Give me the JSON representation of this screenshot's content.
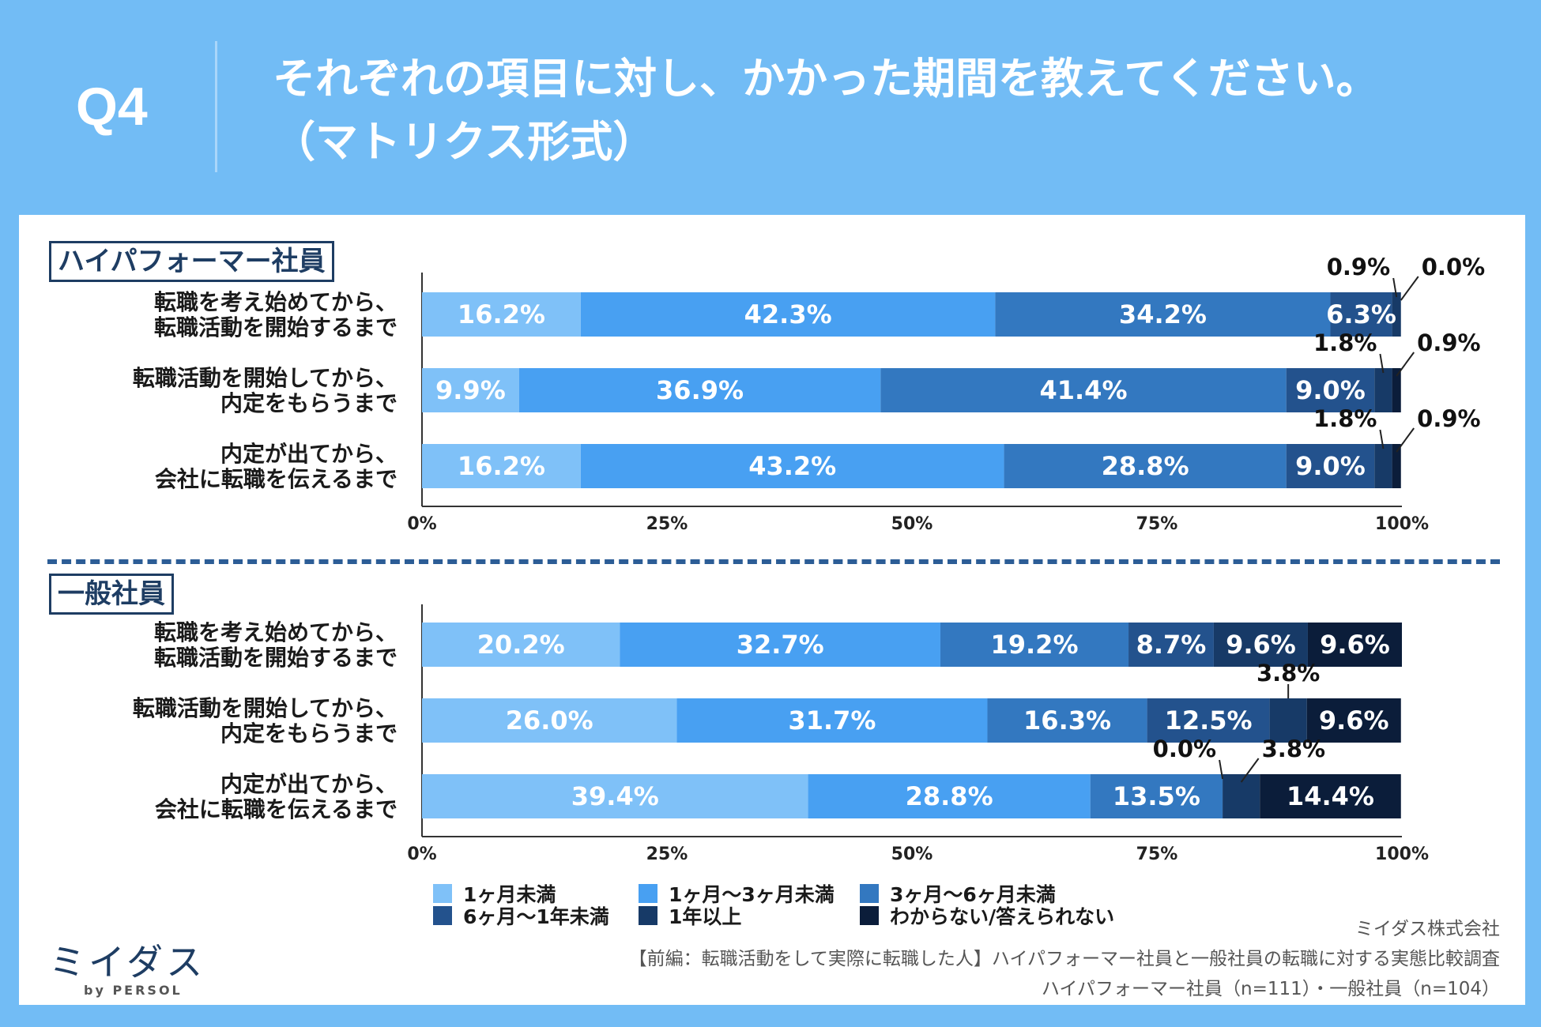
{
  "header": {
    "q_number": "Q4",
    "title": "それぞれの項目に対し、かかった期間を教えてください。\n（マトリクス形式）"
  },
  "chart_data": [
    {
      "type": "bar",
      "orientation": "horizontal",
      "stacked": true,
      "title": "ハイパフォーマー社員",
      "categories": [
        "転職を考え始めてから、\n転職活動を開始するまで",
        "転職活動を開始してから、\n内定をもらうまで",
        "内定が出てから、\n会社に転職を伝えるまで"
      ],
      "series": [
        {
          "name": "1ヶ月未満",
          "values": [
            16.2,
            9.9,
            16.2
          ]
        },
        {
          "name": "1ヶ月〜3ヶ月未満",
          "values": [
            42.3,
            36.9,
            43.2
          ]
        },
        {
          "name": "3ヶ月〜6ヶ月未満",
          "values": [
            34.2,
            41.4,
            28.8
          ]
        },
        {
          "name": "6ヶ月〜1年未満",
          "values": [
            6.3,
            9.0,
            9.0
          ]
        },
        {
          "name": "1年以上",
          "values": [
            0.9,
            1.8,
            1.8
          ]
        },
        {
          "name": "わからない/答えられない",
          "values": [
            0.0,
            0.9,
            0.9
          ]
        }
      ],
      "xlim": [
        0,
        100
      ],
      "xticks": [
        "0%",
        "25%",
        "50%",
        "75%",
        "100%"
      ]
    },
    {
      "type": "bar",
      "orientation": "horizontal",
      "stacked": true,
      "title": "一般社員",
      "categories": [
        "転職を考え始めてから、\n転職活動を開始するまで",
        "転職活動を開始してから、\n内定をもらうまで",
        "内定が出てから、\n会社に転職を伝えるまで"
      ],
      "series": [
        {
          "name": "1ヶ月未満",
          "values": [
            20.2,
            26.0,
            39.4
          ]
        },
        {
          "name": "1ヶ月〜3ヶ月未満",
          "values": [
            32.7,
            31.7,
            28.8
          ]
        },
        {
          "name": "3ヶ月〜6ヶ月未満",
          "values": [
            19.2,
            16.3,
            13.5
          ]
        },
        {
          "name": "6ヶ月〜1年未満",
          "values": [
            8.7,
            12.5,
            0.0
          ]
        },
        {
          "name": "1年以上",
          "values": [
            9.6,
            3.8,
            3.8
          ]
        },
        {
          "name": "わからない/答えられない",
          "values": [
            9.6,
            9.6,
            14.4
          ]
        }
      ],
      "xlim": [
        0,
        100
      ],
      "xticks": [
        "0%",
        "25%",
        "50%",
        "75%",
        "100%"
      ]
    }
  ],
  "colors": [
    "#7fc1f8",
    "#48a0f2",
    "#3378c0",
    "#23528d",
    "#173a67",
    "#0b1d3a"
  ],
  "legend": [
    "1ヶ月未満",
    "1ヶ月〜3ヶ月未満",
    "3ヶ月〜6ヶ月未満",
    "6ヶ月〜1年未満",
    "1年以上",
    "わからない/答えられない"
  ],
  "footer": {
    "logo": "ミイダス",
    "logo_sub": "by PERSOL",
    "company": "ミイダス株式会社",
    "survey": "【前編：転職活動をして実際に転職した人】ハイパフォーマー社員と一般社員の転職に対する実態比較調査",
    "sample": "ハイパフォーマー社員（n=111）・一般社員（n=104）"
  }
}
